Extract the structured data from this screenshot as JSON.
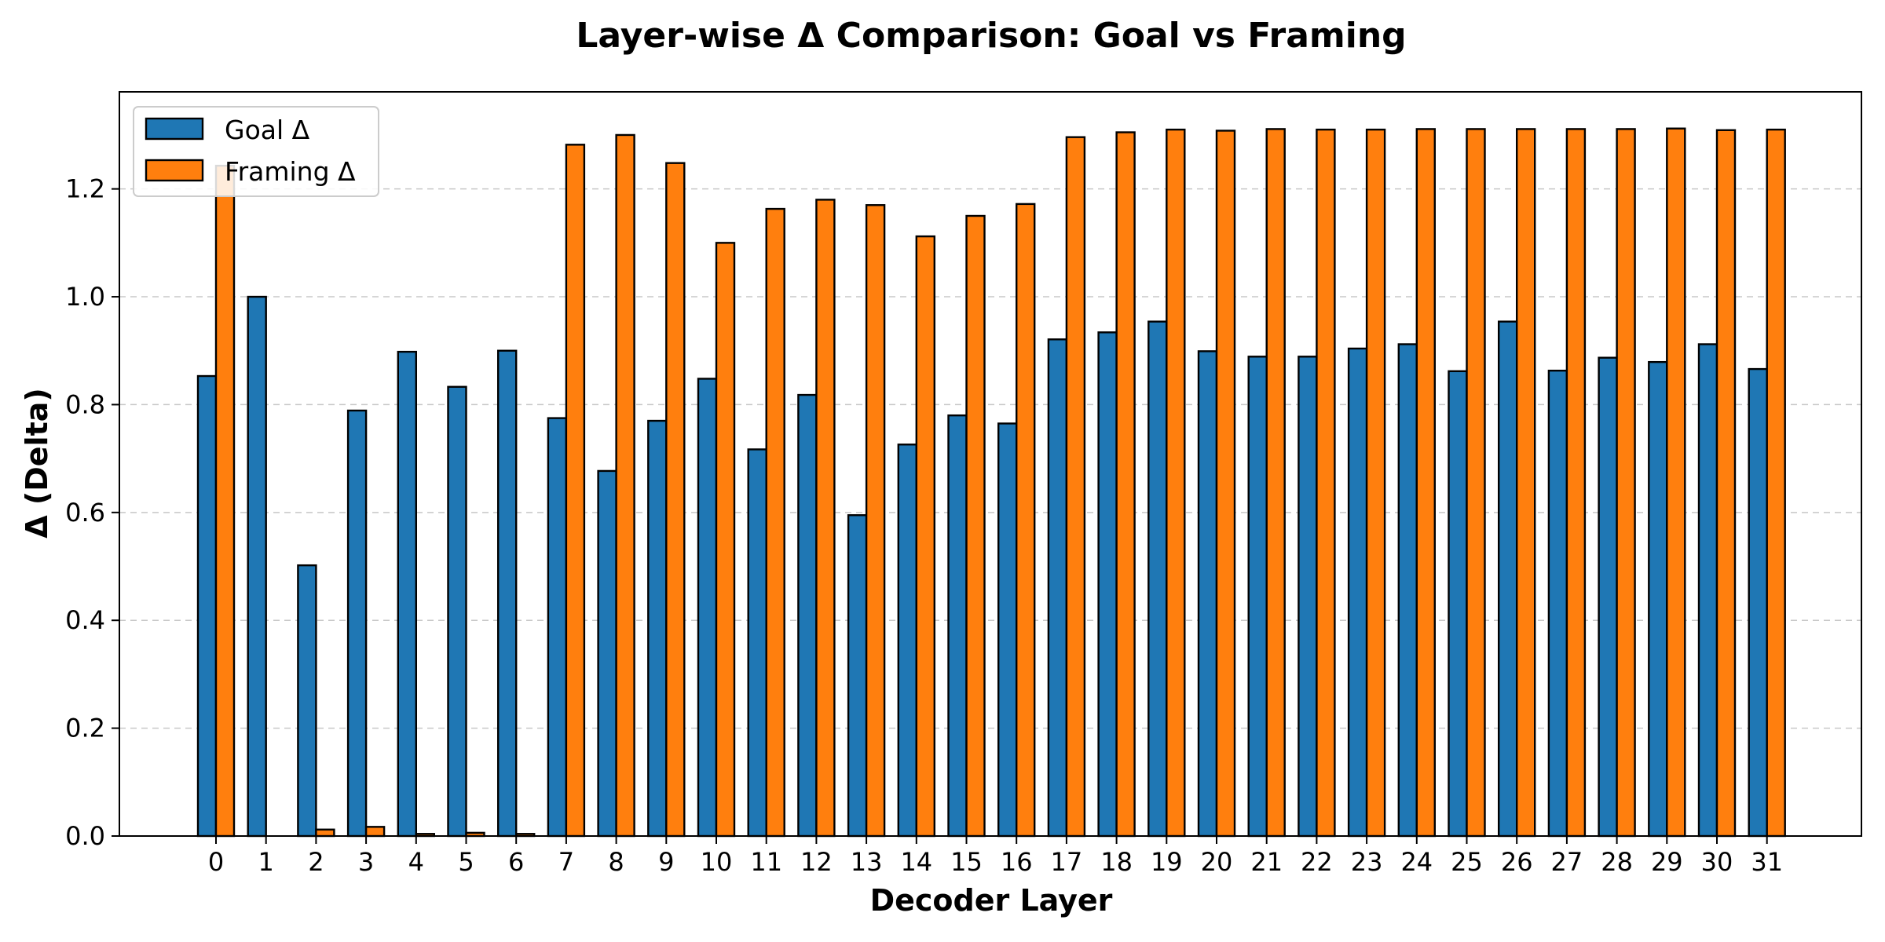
{
  "chart_data": {
    "type": "bar",
    "title": "Layer-wise Δ Comparison: Goal vs Framing",
    "xlabel": "Decoder Layer",
    "ylabel": "Δ (Delta)",
    "categories": [
      "0",
      "1",
      "2",
      "3",
      "4",
      "5",
      "6",
      "7",
      "8",
      "9",
      "10",
      "11",
      "12",
      "13",
      "14",
      "15",
      "16",
      "17",
      "18",
      "19",
      "20",
      "21",
      "22",
      "23",
      "24",
      "25",
      "26",
      "27",
      "28",
      "29",
      "30",
      "31"
    ],
    "series": [
      {
        "name": "Goal Δ",
        "color": "#1f77b4",
        "values": [
          0.853,
          1.0,
          0.502,
          0.789,
          0.898,
          0.833,
          0.9,
          0.775,
          0.677,
          0.77,
          0.848,
          0.717,
          0.818,
          0.595,
          0.726,
          0.78,
          0.765,
          0.921,
          0.934,
          0.954,
          0.899,
          0.889,
          0.889,
          0.904,
          0.912,
          0.862,
          0.954,
          0.863,
          0.887,
          0.879,
          0.912,
          0.866
        ]
      },
      {
        "name": "Framing Δ",
        "color": "#ff7f0e",
        "values": [
          1.243,
          0.0,
          0.012,
          0.017,
          0.004,
          0.006,
          0.004,
          1.282,
          1.3,
          1.248,
          1.1,
          1.163,
          1.18,
          1.17,
          1.112,
          1.15,
          1.172,
          1.296,
          1.305,
          1.31,
          1.308,
          1.311,
          1.31,
          1.31,
          1.311,
          1.311,
          1.311,
          1.311,
          1.311,
          1.312,
          1.309,
          1.31
        ]
      }
    ],
    "yticks": [
      "0.0",
      "0.2",
      "0.4",
      "0.6",
      "0.8",
      "1.0",
      "1.2"
    ],
    "ylim": [
      0,
      1.38
    ],
    "grid": "y-dashed",
    "legend_position": "top-left"
  }
}
